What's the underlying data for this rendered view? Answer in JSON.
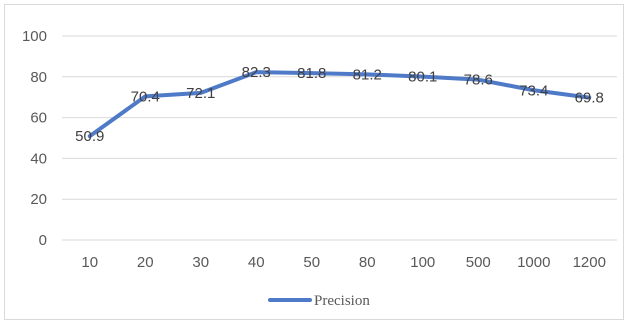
{
  "chart_data": {
    "type": "line",
    "title": "",
    "xlabel": "",
    "ylabel": "",
    "categories": [
      "10",
      "20",
      "30",
      "40",
      "50",
      "80",
      "100",
      "500",
      "1000",
      "1200"
    ],
    "series": [
      {
        "name": "Precision",
        "values": [
          50.9,
          70.4,
          72.1,
          82.3,
          81.8,
          81.2,
          80.1,
          78.6,
          73.4,
          69.8
        ]
      }
    ],
    "ylim": [
      0,
      100
    ],
    "yticks": [
      0,
      20,
      40,
      60,
      80,
      100
    ],
    "grid": "horizontal",
    "legend": "bottom",
    "line_color": "#4f7ac7",
    "grid_color": "#d9d9d9"
  }
}
